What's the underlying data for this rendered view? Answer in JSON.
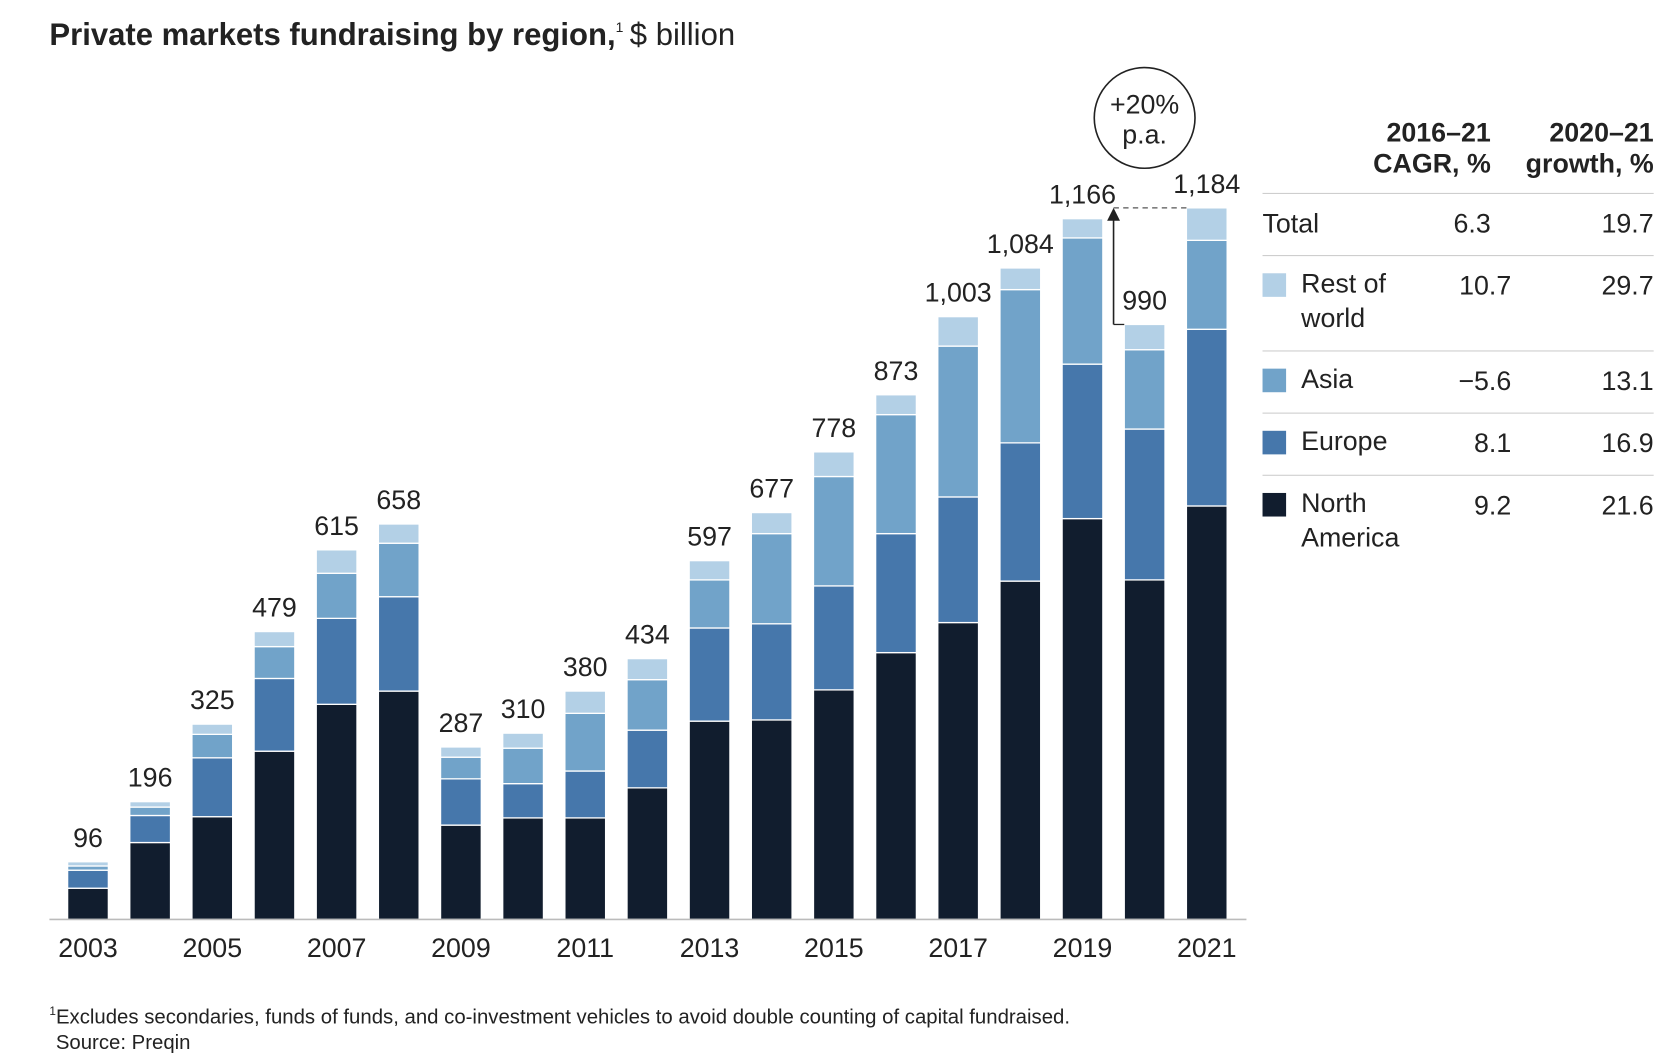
{
  "chart_data": {
    "type": "stacked_bar",
    "title": "Private markets fundraising by region,",
    "title_note": "1",
    "unit": "$ billion",
    "categories": [
      "2003",
      null,
      "2005",
      null,
      "2007",
      null,
      "2009",
      null,
      "2011",
      null,
      "2013",
      null,
      "2015",
      null,
      "2017",
      null,
      "2019",
      null,
      "2021"
    ],
    "series": [
      {
        "name": "North America",
        "color": "#111d2e",
        "values": [
          52,
          128,
          171,
          280,
          358,
          380,
          157,
          169,
          169,
          219,
          330,
          332,
          382,
          444,
          494,
          563,
          667,
          565,
          688
        ]
      },
      {
        "name": "Europe",
        "color": "#4677ab",
        "values": [
          30,
          45,
          98,
          121,
          143,
          157,
          77,
          57,
          78,
          96,
          155,
          160,
          173,
          198,
          209,
          230,
          257,
          251,
          294
        ]
      },
      {
        "name": "Asia",
        "color": "#71a3c9",
        "values": [
          7,
          14,
          39,
          53,
          75,
          89,
          36,
          59,
          96,
          84,
          80,
          150,
          182,
          198,
          251,
          255,
          210,
          132,
          148
        ]
      },
      {
        "name": "Rest of world",
        "color": "#b3d0e6",
        "values": [
          7,
          9,
          17,
          25,
          39,
          32,
          17,
          25,
          37,
          35,
          32,
          35,
          41,
          33,
          49,
          36,
          32,
          42,
          54
        ]
      }
    ],
    "totals": [
      96,
      196,
      325,
      479,
      615,
      658,
      287,
      310,
      380,
      434,
      597,
      677,
      778,
      873,
      1003,
      1084,
      1166,
      990,
      1184
    ],
    "totals_labels": [
      "96",
      "196",
      "325",
      "479",
      "615",
      "658",
      "287",
      "310",
      "380",
      "434",
      "597",
      "677",
      "778",
      "873",
      "1,003",
      "1,084",
      "1,166",
      "990",
      "1,184"
    ],
    "ylim": [
      0,
      1200
    ],
    "annotation": [
      "+20%",
      "p.a."
    ],
    "table": {
      "header": [
        [
          "2016–21",
          "CAGR, %"
        ],
        [
          "2020–21",
          "growth, %"
        ]
      ],
      "total_label": "Total",
      "total": [
        6.3,
        19.7
      ],
      "rows": [
        [
          10.7,
          29.7
        ],
        [
          {
            "value": -5.6,
            "label": "−5.6"
          },
          13.1
        ],
        [
          8.1,
          16.9
        ],
        [
          9.2,
          21.6
        ]
      ]
    },
    "footnote_mark": "1",
    "footnote": "Excludes secondaries, funds of funds, and co-investment vehicles to avoid double counting of capital fundraised.",
    "source": "Source: Preqin"
  }
}
